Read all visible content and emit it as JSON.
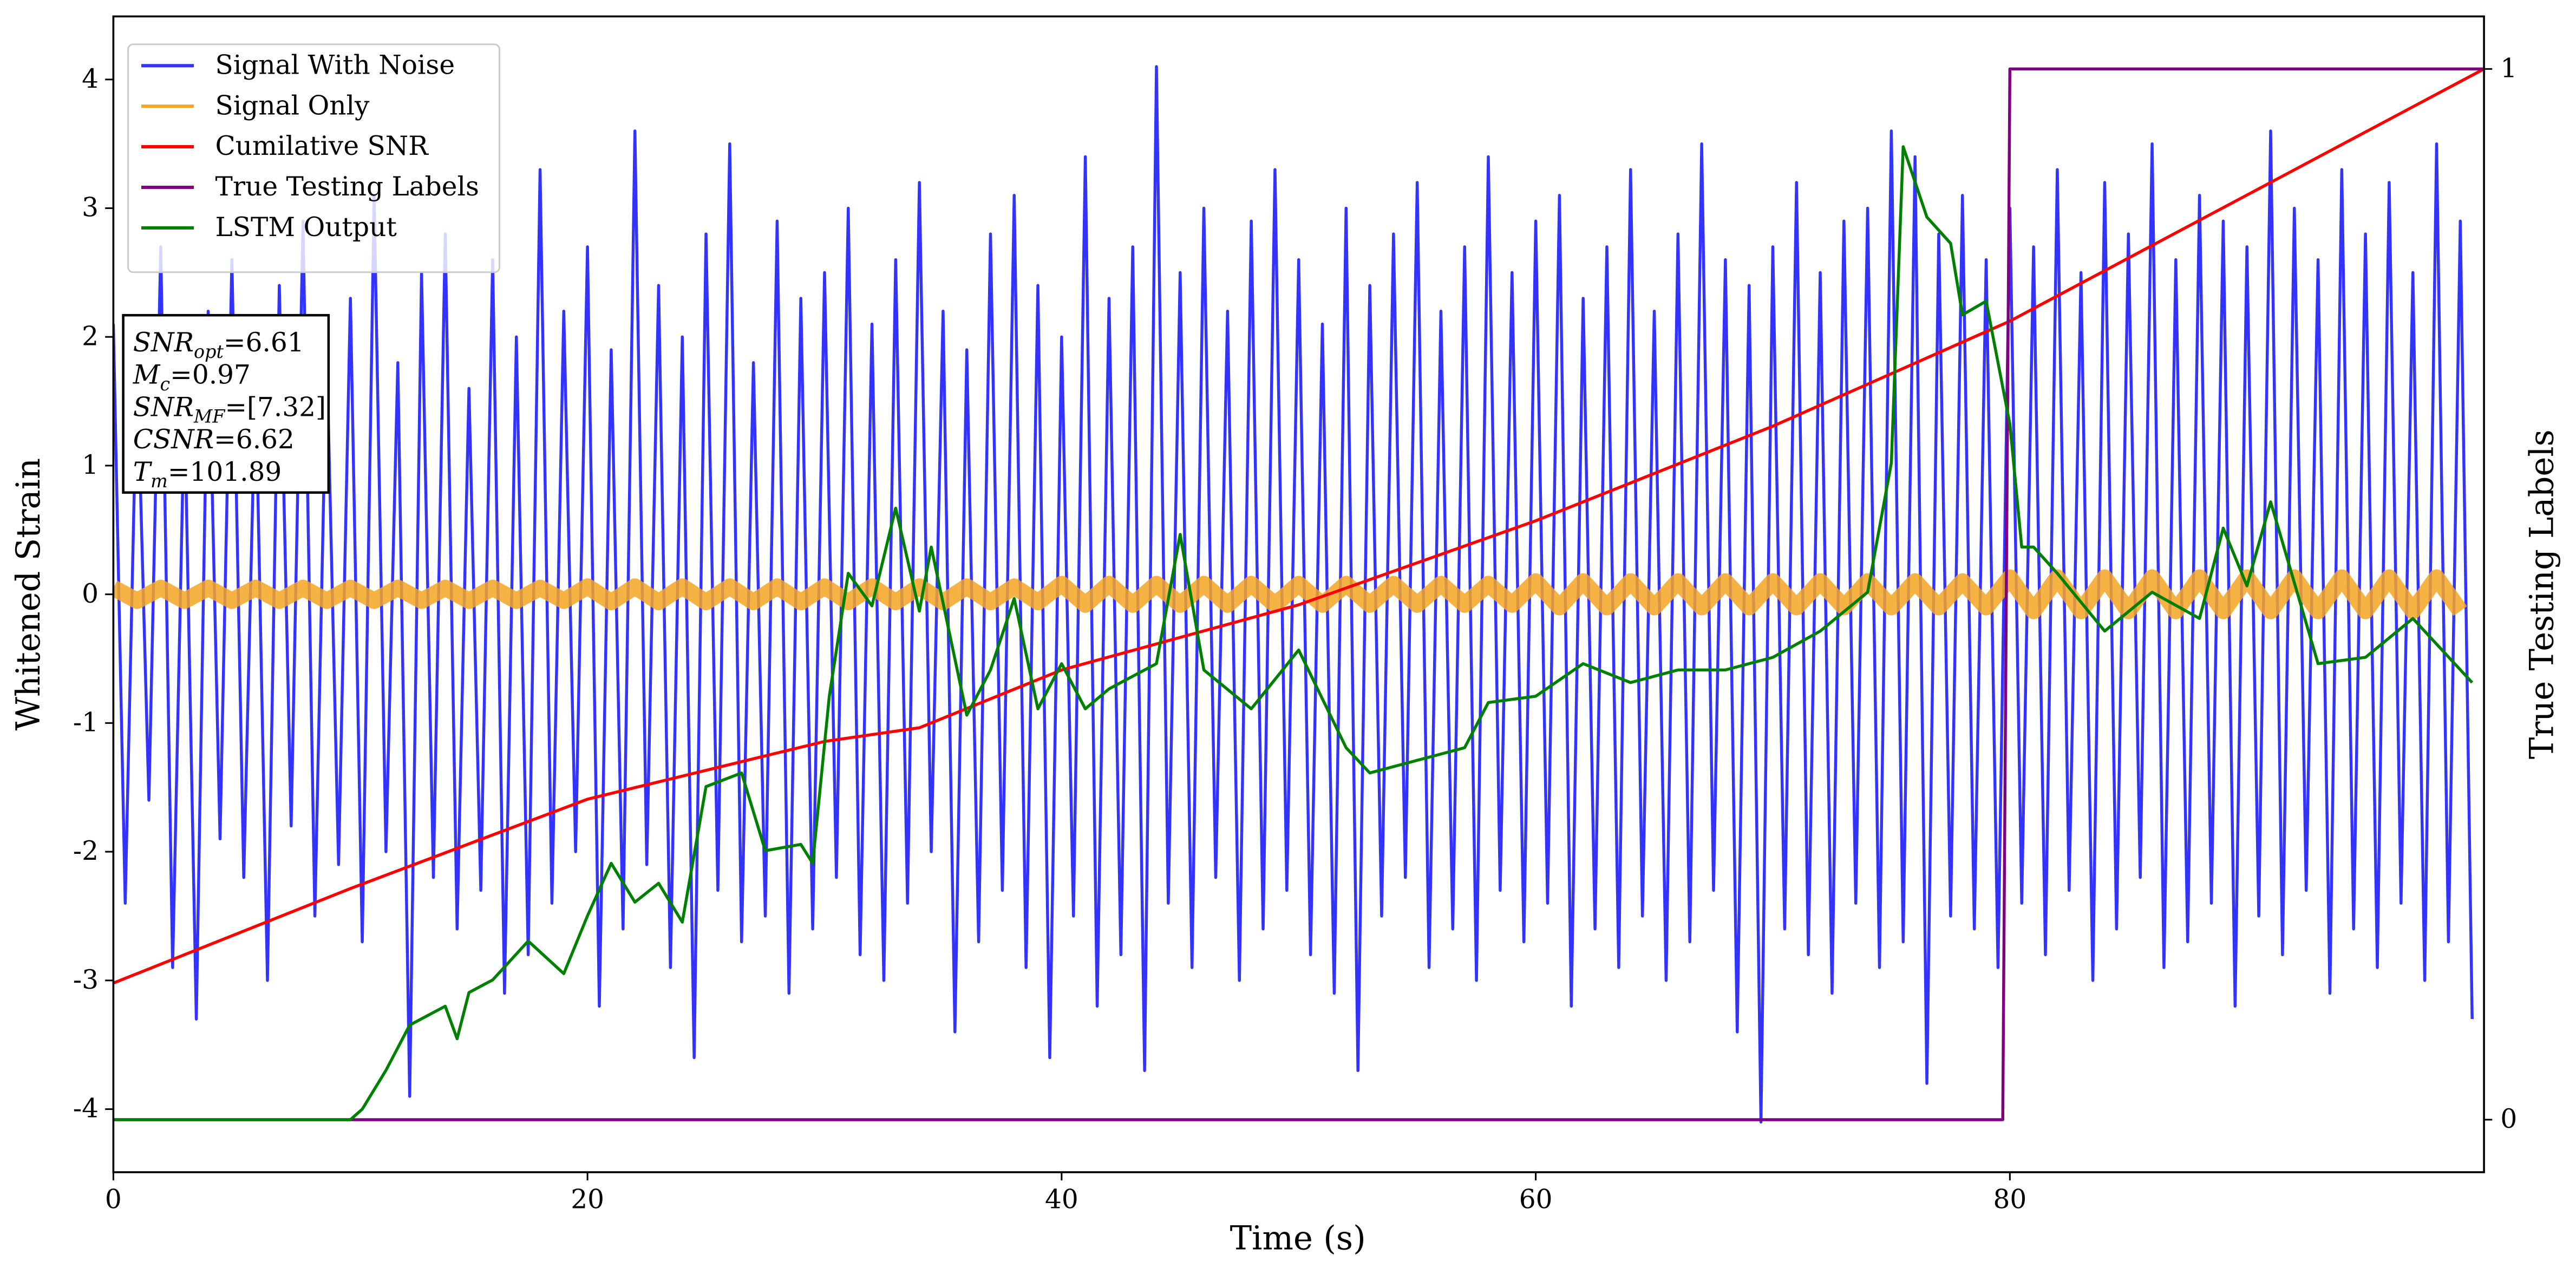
{
  "chart_data": {
    "type": "line",
    "xlabel": "Time (s)",
    "ylabel": "Whitened Strain",
    "y2label": "True Testing Labels",
    "xlim": [
      0,
      100
    ],
    "ylim": [
      -4.49,
      4.49
    ],
    "y2lim": [
      -0.05,
      1.05
    ],
    "xticks": [
      0,
      20,
      40,
      60,
      80
    ],
    "yticks": [
      -4,
      -3,
      -2,
      -1,
      0,
      1,
      2,
      3,
      4
    ],
    "y2ticks": [
      0,
      1
    ],
    "legend": "upper left",
    "series": [
      {
        "name": "Signal With Noise",
        "color": "#3333ff",
        "axis": "y",
        "x": [
          0,
          0.5,
          1,
          1.5,
          2,
          2.5,
          3,
          3.5,
          4,
          4.5,
          5,
          5.5,
          6,
          6.5,
          7,
          7.5,
          8,
          8.5,
          9,
          9.5,
          10,
          10.5,
          11,
          11.5,
          12,
          12.5,
          13,
          13.5,
          14,
          14.5,
          15,
          15.5,
          16,
          16.5,
          17,
          17.5,
          18,
          18.5,
          19,
          19.5,
          20,
          20.5,
          21,
          21.5,
          22,
          22.5,
          23,
          23.5,
          24,
          24.5,
          25,
          25.5,
          26,
          26.5,
          27,
          27.5,
          28,
          28.5,
          29,
          29.5,
          30,
          30.5,
          31,
          31.5,
          32,
          32.5,
          33,
          33.5,
          34,
          34.5,
          35,
          35.5,
          36,
          36.5,
          37,
          37.5,
          38,
          38.5,
          39,
          39.5,
          40,
          40.5,
          41,
          41.5,
          42,
          42.5,
          43,
          43.5,
          44,
          44.5,
          45,
          45.5,
          46,
          46.5,
          47,
          47.5,
          48,
          48.5,
          49,
          49.5,
          50,
          50.5,
          51,
          51.5,
          52,
          52.5,
          53,
          53.5,
          54,
          54.5,
          55,
          55.5,
          56,
          56.5,
          57,
          57.5,
          58,
          58.5,
          59,
          59.5,
          60,
          60.5,
          61,
          61.5,
          62,
          62.5,
          63,
          63.5,
          64,
          64.5,
          65,
          65.5,
          66,
          66.5,
          67,
          67.5,
          68,
          68.5,
          69,
          69.5,
          70,
          70.5,
          71,
          71.5,
          72,
          72.5,
          73,
          73.5,
          74,
          74.5,
          75,
          75.5,
          76,
          76.5,
          77,
          77.5,
          78,
          78.5,
          79,
          79.5,
          80,
          80.5,
          81,
          81.5,
          82,
          82.5,
          83,
          83.5,
          84,
          84.5,
          85,
          85.5,
          86,
          86.5,
          87,
          87.5,
          88,
          88.5,
          89,
          89.5,
          90,
          90.5,
          91,
          91.5,
          92,
          92.5,
          93,
          93.5,
          94,
          94.5,
          95,
          95.5,
          96,
          96.5,
          97,
          97.5,
          98,
          98.5,
          99,
          99.5
        ],
        "values": [
          2.1,
          -2.4,
          1.8,
          -1.6,
          2.7,
          -2.9,
          1.5,
          -3.3,
          2.2,
          -1.9,
          2.6,
          -2.2,
          1.7,
          -3.0,
          2.4,
          -1.8,
          2.9,
          -2.5,
          1.9,
          -2.1,
          2.3,
          -2.7,
          3.1,
          -2.0,
          1.8,
          -3.9,
          2.5,
          -2.2,
          2.8,
          -2.6,
          1.6,
          -2.3,
          2.6,
          -3.1,
          2.0,
          -2.8,
          3.3,
          -2.4,
          2.2,
          -2.0,
          2.7,
          -3.2,
          1.9,
          -2.6,
          3.6,
          -2.1,
          2.4,
          -2.9,
          2.0,
          -3.6,
          2.8,
          -2.3,
          3.5,
          -2.7,
          1.8,
          -2.5,
          2.9,
          -3.1,
          2.3,
          -2.6,
          2.5,
          -2.2,
          3.0,
          -2.8,
          2.1,
          -3.0,
          2.6,
          -2.4,
          3.2,
          -2.0,
          2.2,
          -3.4,
          1.9,
          -2.7,
          2.8,
          -2.3,
          3.1,
          -2.9,
          2.4,
          -3.6,
          2.0,
          -2.5,
          3.4,
          -3.2,
          2.3,
          -2.8,
          2.7,
          -3.7,
          4.1,
          -2.4,
          2.5,
          -2.9,
          3.0,
          -2.2,
          2.2,
          -3.0,
          2.9,
          -2.6,
          3.3,
          -2.3,
          2.6,
          -2.8,
          2.1,
          -3.1,
          3.0,
          -3.7,
          2.4,
          -2.5,
          2.8,
          -2.2,
          3.2,
          -2.9,
          2.2,
          -2.6,
          2.7,
          -3.0,
          3.4,
          -2.3,
          2.5,
          -2.7,
          2.9,
          -2.4,
          3.1,
          -3.2,
          2.3,
          -2.6,
          2.7,
          -2.9,
          3.3,
          -2.5,
          2.2,
          -3.0,
          2.8,
          -2.7,
          3.5,
          -2.3,
          2.6,
          -3.4,
          2.4,
          -4.1,
          2.7,
          -2.6,
          3.2,
          -2.8,
          2.5,
          -3.1,
          2.9,
          -2.4,
          3.0,
          -2.9,
          3.6,
          -2.7,
          3.4,
          -3.8,
          2.8,
          -2.5,
          3.1,
          -2.6,
          2.6,
          -2.9,
          3.0,
          -2.4,
          2.7,
          -2.8,
          3.3,
          -2.3,
          2.5,
          -3.0,
          3.2,
          -2.6,
          2.8,
          -2.2,
          3.5,
          -2.9,
          2.6,
          -2.7,
          3.1,
          -2.4,
          2.9,
          -3.2,
          2.7,
          -2.5,
          3.6,
          -2.8,
          3.0,
          -2.3,
          2.6,
          -3.1,
          3.3,
          -2.6,
          2.8,
          -2.9,
          3.2,
          -2.4,
          2.5,
          -3.0,
          3.5,
          -2.7,
          2.9,
          -3.3
        ]
      },
      {
        "name": "Signal Only",
        "color": "#f5a623",
        "axis": "y",
        "x": [
          0,
          1,
          2,
          3,
          4,
          5,
          6,
          7,
          8,
          9,
          10,
          11,
          12,
          13,
          14,
          15,
          16,
          17,
          18,
          19,
          20,
          21,
          22,
          23,
          24,
          25,
          26,
          27,
          28,
          29,
          30,
          31,
          32,
          33,
          34,
          35,
          36,
          37,
          38,
          39,
          40,
          41,
          42,
          43,
          44,
          45,
          46,
          47,
          48,
          49,
          50,
          51,
          52,
          53,
          54,
          55,
          56,
          57,
          58,
          59,
          60,
          61,
          62,
          63,
          64,
          65,
          66,
          67,
          68,
          69,
          70,
          71,
          72,
          73,
          74,
          75,
          76,
          77,
          78,
          79,
          80,
          81,
          82,
          83,
          84,
          85,
          86,
          87,
          88,
          89,
          90,
          91,
          92,
          93,
          94,
          95,
          96,
          97,
          98,
          99
        ],
        "values": [
          0.05,
          -0.05,
          0.05,
          -0.05,
          0.05,
          -0.05,
          0.05,
          -0.05,
          0.05,
          -0.05,
          0.05,
          -0.05,
          0.05,
          -0.05,
          0.05,
          -0.05,
          0.05,
          -0.05,
          0.05,
          -0.05,
          0.06,
          -0.06,
          0.06,
          -0.06,
          0.06,
          -0.06,
          0.06,
          -0.06,
          0.06,
          -0.06,
          0.06,
          -0.06,
          0.06,
          -0.06,
          0.06,
          -0.06,
          0.06,
          -0.06,
          0.06,
          -0.06,
          0.08,
          -0.08,
          0.08,
          -0.08,
          0.08,
          -0.08,
          0.08,
          -0.08,
          0.08,
          -0.08,
          0.08,
          -0.08,
          0.08,
          -0.08,
          0.08,
          -0.08,
          0.08,
          -0.08,
          0.08,
          -0.08,
          0.1,
          -0.1,
          0.1,
          -0.1,
          0.1,
          -0.1,
          0.1,
          -0.1,
          0.1,
          -0.1,
          0.1,
          -0.1,
          0.1,
          -0.1,
          0.1,
          -0.1,
          0.1,
          -0.1,
          0.1,
          -0.1,
          0.13,
          -0.13,
          0.13,
          -0.13,
          0.13,
          -0.13,
          0.13,
          -0.13,
          0.13,
          -0.13,
          0.13,
          -0.13,
          0.13,
          -0.13,
          0.13,
          -0.13,
          0.13,
          -0.13,
          0.13,
          -0.13
        ]
      },
      {
        "name": "Cumilative SNR",
        "color": "#ff0000",
        "axis": "y2",
        "x": [
          0,
          10,
          20,
          30,
          34,
          40,
          50,
          60,
          70,
          80,
          90,
          100
        ],
        "values": [
          0.13,
          0.22,
          0.305,
          0.36,
          0.373,
          0.428,
          0.49,
          0.57,
          0.66,
          0.76,
          0.88,
          1.0
        ]
      },
      {
        "name": "True Testing Labels",
        "color": "#800080",
        "axis": "y2",
        "x": [
          0,
          79.7,
          80,
          100
        ],
        "values": [
          0,
          0,
          1,
          1
        ]
      },
      {
        "name": "LSTM Output",
        "color": "#008000",
        "axis": "y2",
        "x": [
          0,
          10,
          10.5,
          11.5,
          12.5,
          14,
          14.5,
          15,
          16,
          17.5,
          19,
          20,
          21,
          22,
          23,
          24,
          25,
          26.5,
          27.5,
          29,
          29.5,
          30.2,
          31,
          32,
          33,
          34,
          34.5,
          36,
          37,
          38,
          39,
          40,
          41,
          42,
          44,
          45,
          46,
          48,
          50,
          52,
          53,
          55,
          57,
          58,
          60,
          62,
          64,
          66,
          68,
          70,
          72,
          74,
          75,
          75.5,
          76.5,
          77.5,
          78,
          79,
          80,
          80.5,
          81,
          82,
          84,
          86,
          88,
          89,
          90,
          91,
          93,
          95,
          97,
          99.5
        ],
        "values": [
          0,
          0,
          0.01,
          0.047,
          0.09,
          0.108,
          0.077,
          0.121,
          0.133,
          0.17,
          0.139,
          0.194,
          0.244,
          0.207,
          0.225,
          0.188,
          0.317,
          0.33,
          0.256,
          0.262,
          0.244,
          0.403,
          0.52,
          0.489,
          0.582,
          0.484,
          0.545,
          0.385,
          0.428,
          0.496,
          0.391,
          0.434,
          0.391,
          0.41,
          0.434,
          0.557,
          0.428,
          0.391,
          0.447,
          0.354,
          0.33,
          0.342,
          0.354,
          0.397,
          0.403,
          0.434,
          0.416,
          0.428,
          0.428,
          0.44,
          0.465,
          0.502,
          0.625,
          0.926,
          0.859,
          0.834,
          0.766,
          0.779,
          0.662,
          0.545,
          0.545,
          0.52,
          0.465,
          0.502,
          0.477,
          0.563,
          0.508,
          0.588,
          0.434,
          0.44,
          0.477,
          0.416
        ]
      }
    ],
    "annotation": [
      {
        "main": "SNR",
        "sub": "opt",
        "rest": "=6.61"
      },
      {
        "main": "M",
        "sub": "c",
        "rest": "=0.97"
      },
      {
        "main": "SNR",
        "sub": "MF",
        "rest": "=[7.32]"
      },
      {
        "main": "CSNR",
        "rest": "=6.62"
      },
      {
        "main": "T",
        "sub": "m",
        "rest": "=101.89"
      }
    ]
  }
}
